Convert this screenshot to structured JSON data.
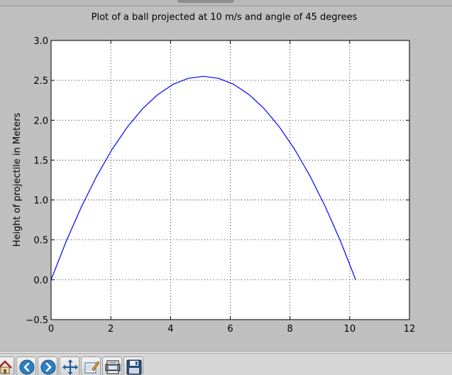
{
  "chart_data": {
    "type": "line",
    "title": "Plot of a ball projected at 10 m/s and angle of 45 degrees",
    "xlabel": "",
    "ylabel": "Height of projectile in Meters",
    "xlim": [
      0,
      12
    ],
    "ylim": [
      -0.5,
      3.0
    ],
    "xticks": [
      "0",
      "2",
      "4",
      "6",
      "8",
      "10",
      "12"
    ],
    "yticks": [
      "3.0",
      "2.5",
      "2.0",
      "1.5",
      "1.0",
      "0.5",
      "0.0",
      "−0.5"
    ],
    "grid": true,
    "grid_style": "dotted",
    "line_color": "#0000ff",
    "series": [
      {
        "x": [
          0.0,
          0.51,
          1.02,
          1.53,
          2.04,
          2.55,
          3.06,
          3.57,
          4.08,
          4.59,
          5.1,
          5.61,
          6.12,
          6.63,
          7.14,
          7.65,
          8.16,
          8.67,
          9.18,
          9.69,
          10.2
        ],
        "y": [
          0.0,
          0.485,
          0.918,
          1.301,
          1.633,
          1.913,
          2.143,
          2.321,
          2.449,
          2.525,
          2.551,
          2.525,
          2.449,
          2.321,
          2.143,
          1.913,
          1.633,
          1.301,
          0.918,
          0.485,
          0.0
        ]
      }
    ]
  },
  "toolbar": {
    "buttons": [
      {
        "icon": "home-icon"
      },
      {
        "icon": "back-arrow-icon"
      },
      {
        "icon": "forward-arrow-icon"
      },
      {
        "icon": "pan-icon"
      },
      {
        "icon": "zoom-rect-icon"
      },
      {
        "icon": "subplots-config-icon"
      },
      {
        "icon": "save-disk-icon"
      }
    ]
  }
}
